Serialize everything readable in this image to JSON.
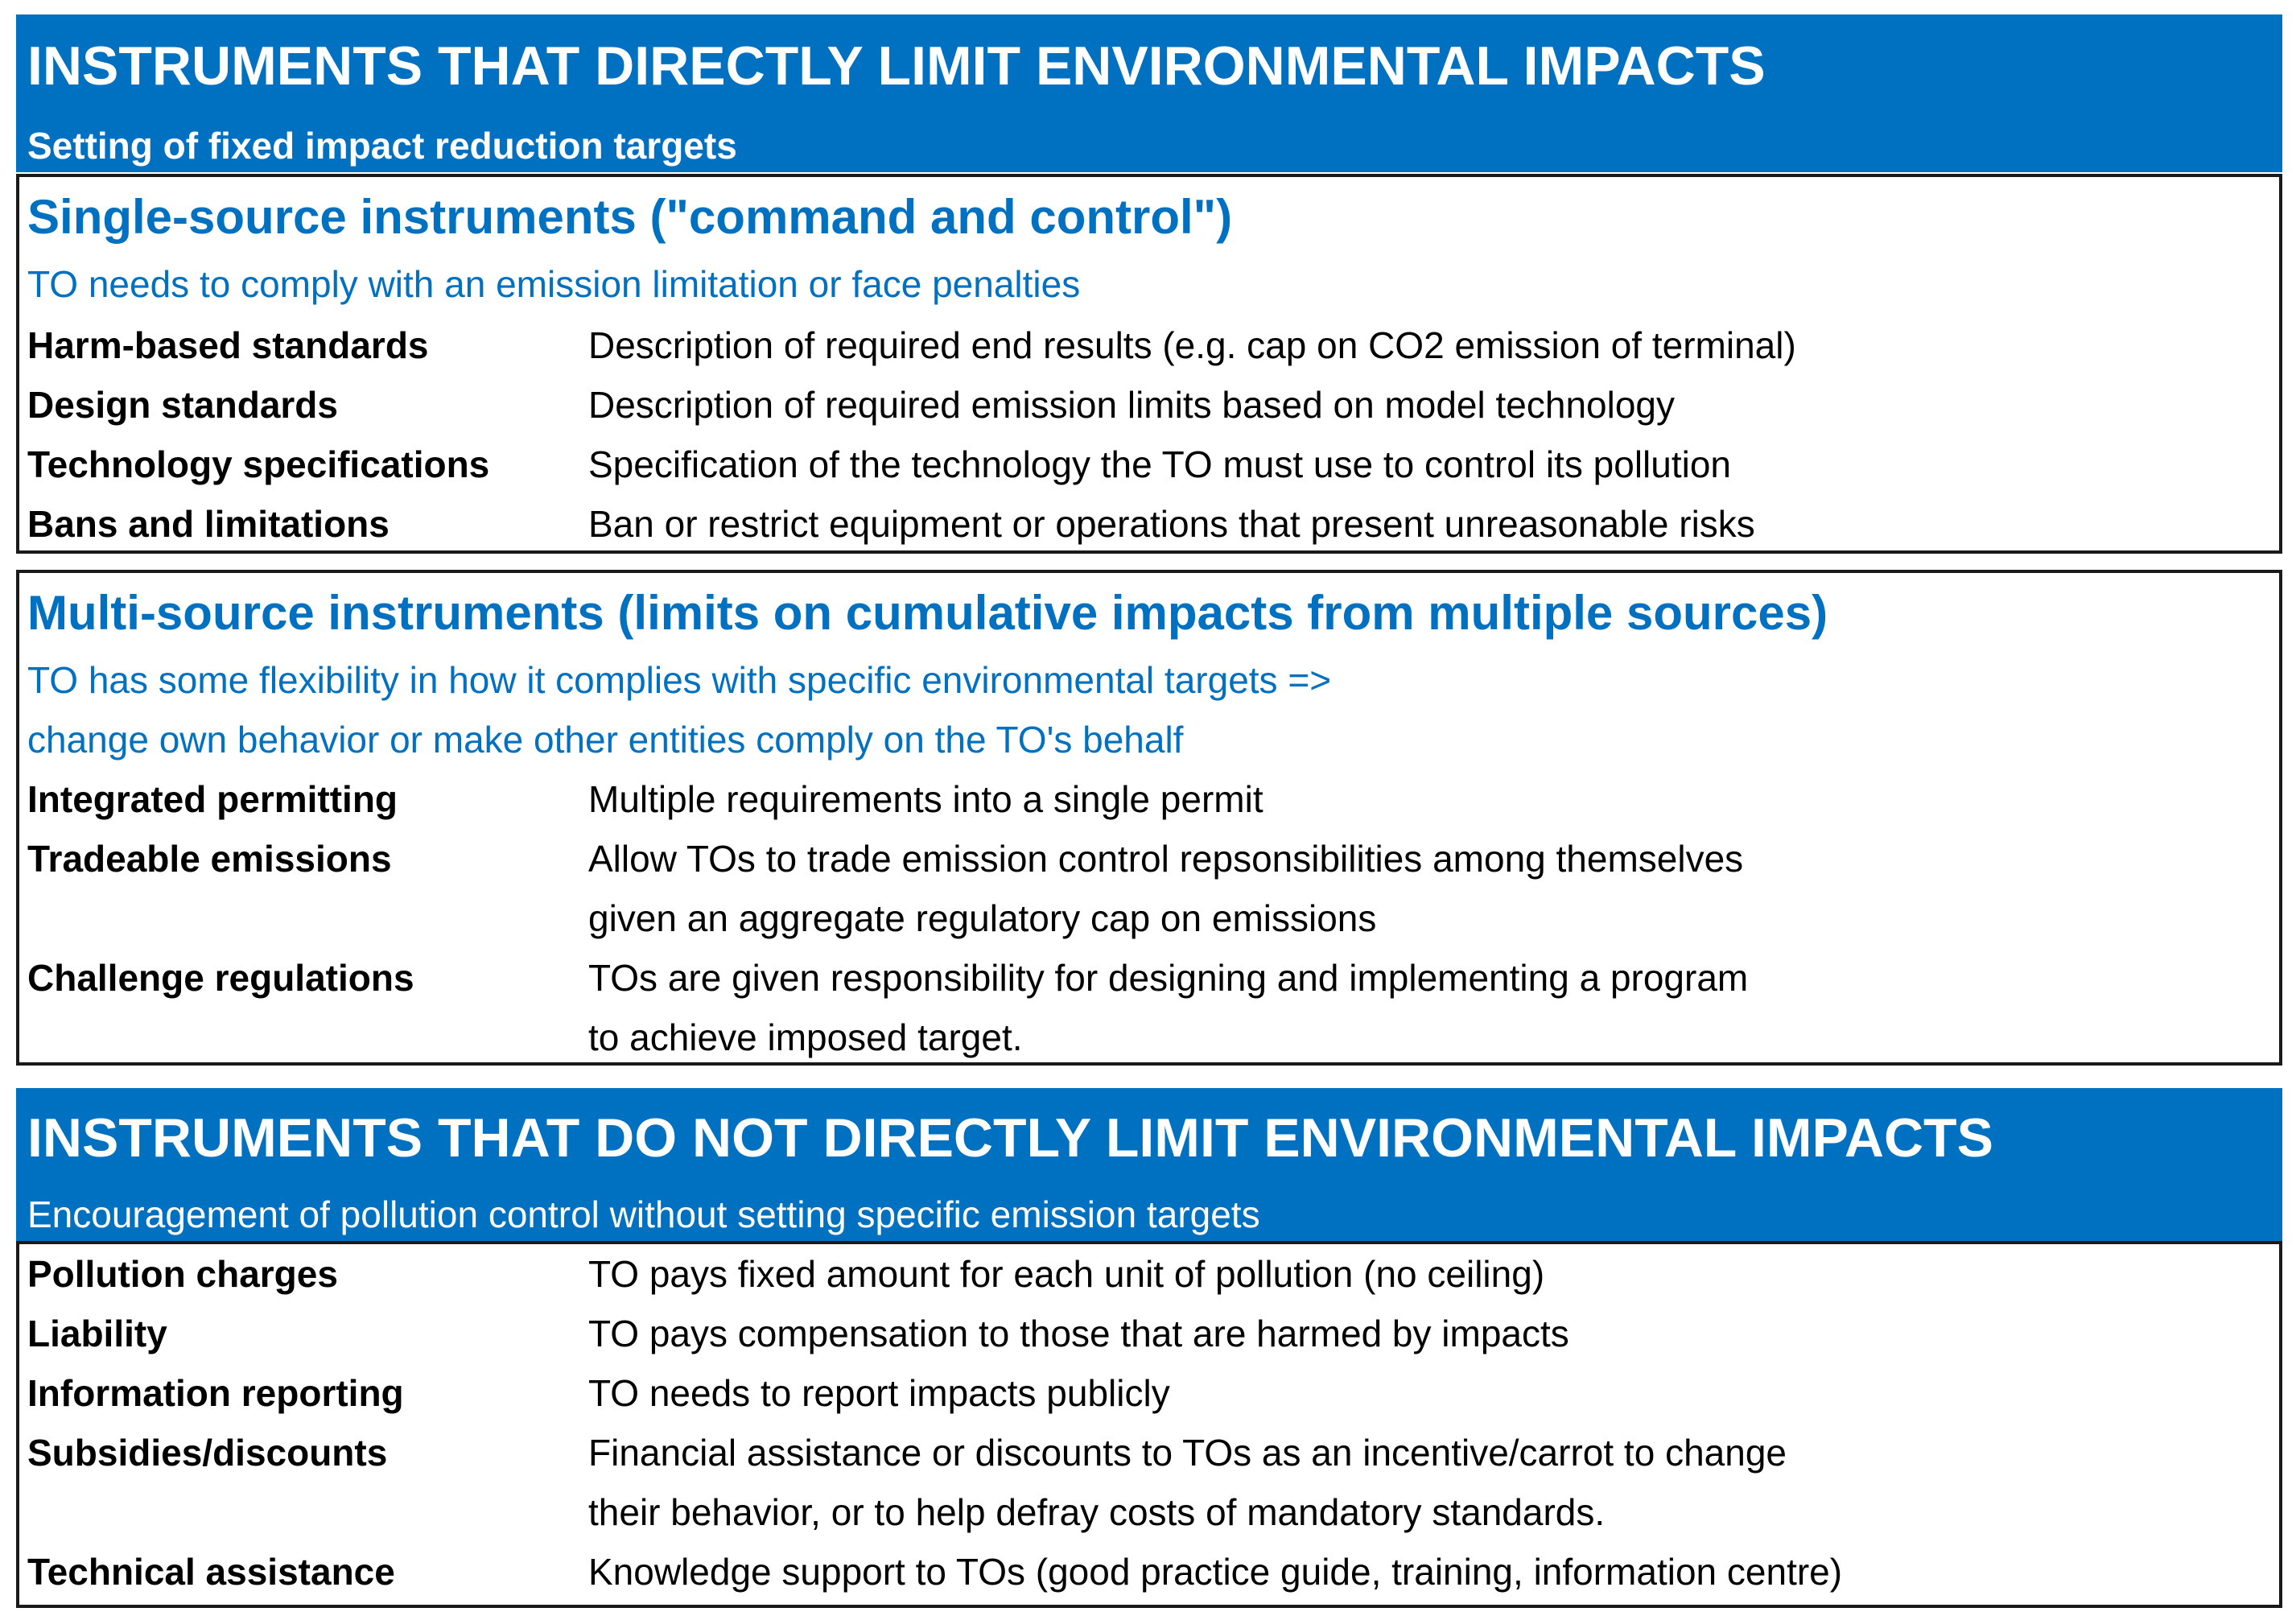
{
  "section1": {
    "title": "INSTRUMENTS THAT DIRECTLY LIMIT ENVIRONMENTAL IMPACTS",
    "subtitle": "Setting of fixed impact reduction targets",
    "single_source": {
      "heading": "Single-source instruments (\"command and control\")",
      "subheading": "TO needs to comply with an emission limitation or face penalties",
      "rows": [
        {
          "term": "Harm-based standards",
          "desc": [
            "Description of required end results (e.g. cap on CO2 emission of terminal)"
          ]
        },
        {
          "term": "Design standards",
          "desc": [
            "Description of required emission limits based on model technology"
          ]
        },
        {
          "term": "Technology specifications",
          "desc": [
            "Specification of the technology the TO must use to control its pollution"
          ]
        },
        {
          "term": "Bans and limitations",
          "desc": [
            "Ban or restrict equipment or operations that present unreasonable risks"
          ]
        }
      ]
    },
    "multi_source": {
      "heading": "Multi-source instruments (limits on cumulative impacts from multiple sources)",
      "subheading_lines": [
        "TO has some flexibility in how it complies with specific environmental targets =>",
        "change own behavior or make other entities comply on the TO's behalf"
      ],
      "rows": [
        {
          "term": "Integrated permitting",
          "desc": [
            "Multiple requirements into a single permit"
          ]
        },
        {
          "term": "Tradeable emissions",
          "desc": [
            "Allow TOs to trade emission control repsonsibilities among themselves",
            "given an aggregate regulatory cap on emissions"
          ]
        },
        {
          "term": "Challenge regulations",
          "desc": [
            "TOs are given responsibility for designing and implementing a program",
            "to achieve imposed target."
          ]
        }
      ]
    }
  },
  "section2": {
    "title": "INSTRUMENTS THAT DO NOT DIRECTLY LIMIT ENVIRONMENTAL IMPACTS",
    "subtitle": "Encouragement of pollution control without setting specific emission targets",
    "rows": [
      {
        "term": "Pollution charges",
        "desc": [
          "TO pays fixed amount for each unit of pollution (no ceiling)"
        ]
      },
      {
        "term": "Liability",
        "desc": [
          "TO pays compensation to those that are harmed by impacts"
        ]
      },
      {
        "term": "Information reporting",
        "desc": [
          "TO needs to report impacts publicly"
        ]
      },
      {
        "term": "Subsidies/discounts",
        "desc": [
          "Financial assistance or discounts to TOs as an incentive/carrot to change",
          "their behavior, or to help defray costs of mandatory standards."
        ]
      },
      {
        "term": "Technical assistance",
        "desc": [
          "Knowledge support to TOs (good practice guide, training, information centre)"
        ]
      }
    ]
  },
  "colors": {
    "accent": "#0070c0",
    "border": "#1a1a1a",
    "text": "#000000"
  }
}
